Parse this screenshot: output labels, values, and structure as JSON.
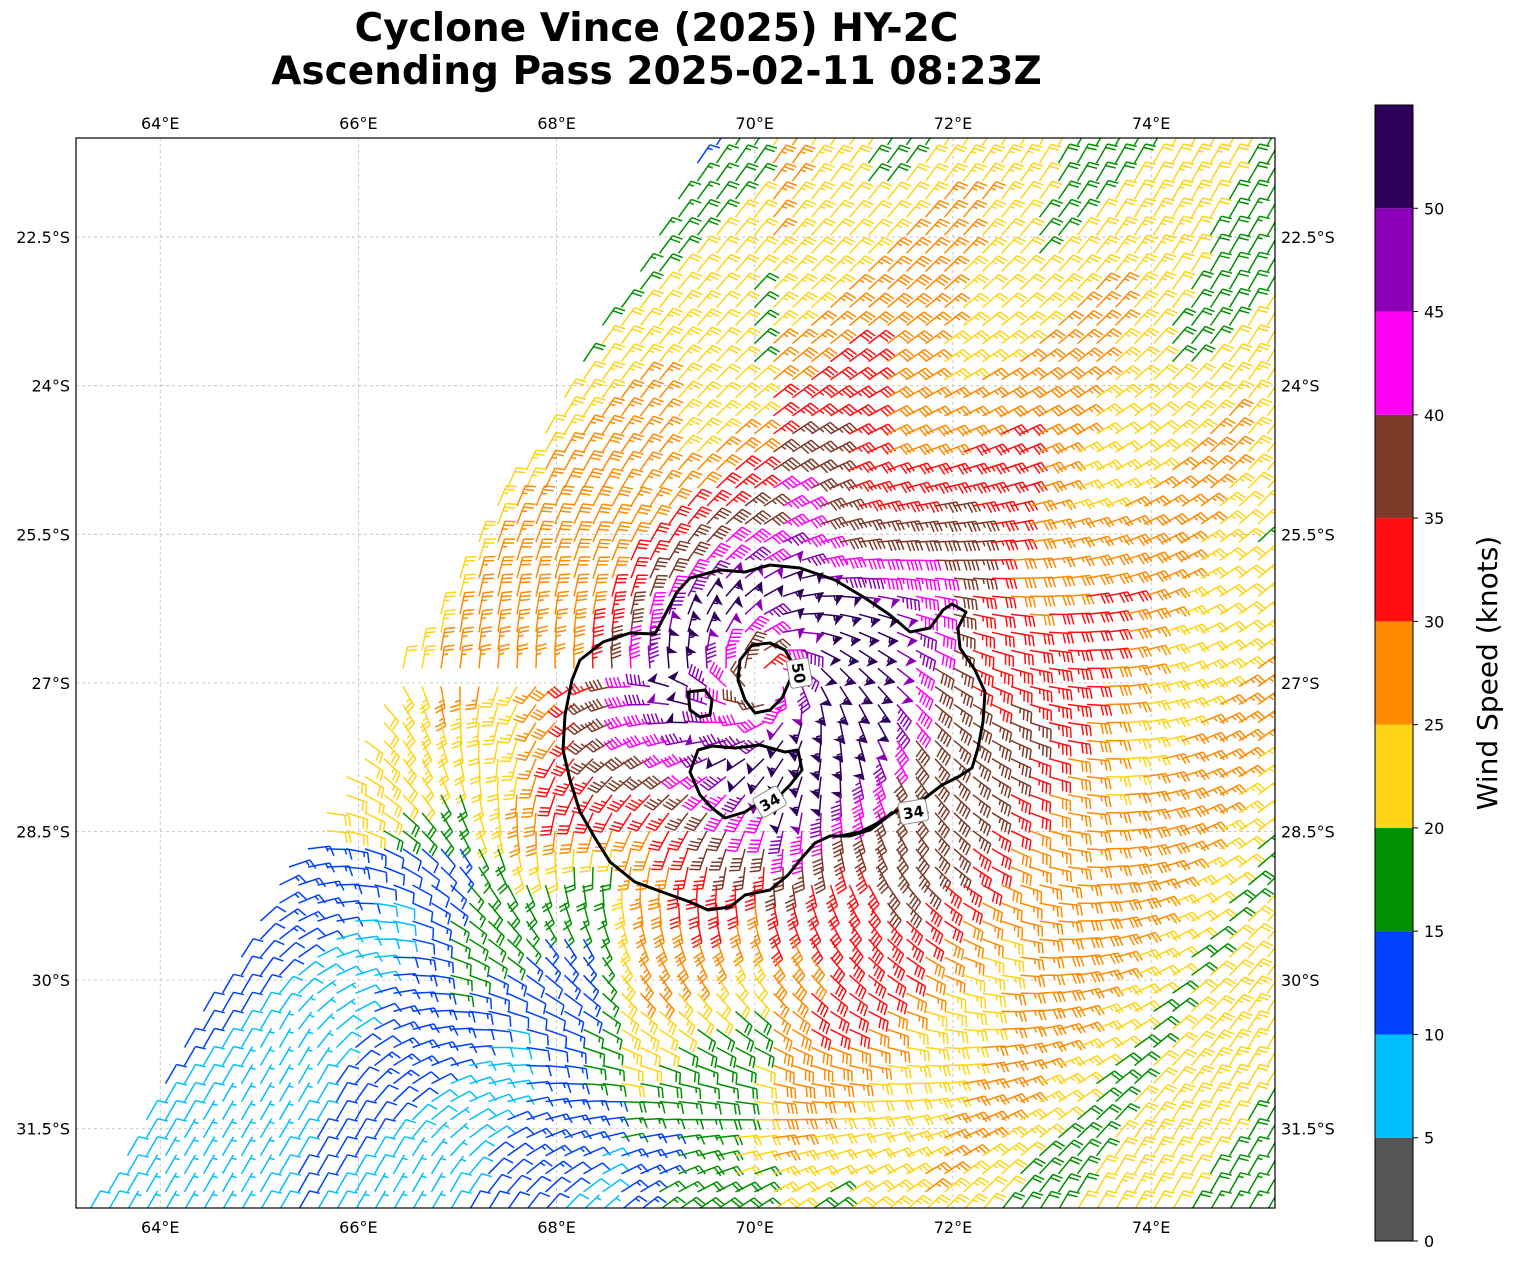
{
  "title": {
    "line1": "Cyclone Vince (2025) HY-2C",
    "line2": "Ascending Pass 2025-02-11 08:23Z"
  },
  "axes": {
    "lon_ticks": [
      "64°E",
      "66°E",
      "68°E",
      "70°E",
      "72°E",
      "74°E"
    ],
    "lat_ticks": [
      "22.5°S",
      "24°S",
      "25.5°S",
      "27°S",
      "28.5°S",
      "30°S",
      "31.5°S"
    ],
    "lon_values": [
      64,
      66,
      68,
      70,
      72,
      74
    ],
    "lat_values": [
      -22.5,
      -24,
      -25.5,
      -27,
      -28.5,
      -30,
      -31.5
    ],
    "lon_range": [
      63.15,
      75.25
    ],
    "lat_range": [
      -32.3,
      -21.5
    ]
  },
  "colorbar": {
    "label": "Wind Speed (knots)",
    "tick_labels": [
      "0",
      "5",
      "10",
      "15",
      "20",
      "25",
      "30",
      "35",
      "40",
      "45",
      "50"
    ],
    "bins": [
      {
        "min": 0,
        "max": 5,
        "color": "#555555"
      },
      {
        "min": 5,
        "max": 10,
        "color": "#00bfff"
      },
      {
        "min": 10,
        "max": 15,
        "color": "#0041ff"
      },
      {
        "min": 15,
        "max": 20,
        "color": "#009000"
      },
      {
        "min": 20,
        "max": 25,
        "color": "#ffd416"
      },
      {
        "min": 25,
        "max": 30,
        "color": "#ff8a00"
      },
      {
        "min": 30,
        "max": 35,
        "color": "#ff0e10"
      },
      {
        "min": 35,
        "max": 40,
        "color": "#7d3a28"
      },
      {
        "min": 40,
        "max": 45,
        "color": "#ff00f6"
      },
      {
        "min": 45,
        "max": 50,
        "color": "#8a00b6"
      },
      {
        "min": 50,
        "max": 55,
        "color": "#2e005c"
      }
    ]
  },
  "storm": {
    "center_lon": 70.15,
    "center_lat": -27.0
  },
  "contours": {
    "labels": [
      {
        "text": "50",
        "lon": 70.45,
        "lat": -26.9,
        "rotate": 80
      },
      {
        "text": "34",
        "lon": 70.15,
        "lat": -28.2,
        "rotate": -30
      },
      {
        "text": "34",
        "lon": 71.6,
        "lat": -28.3,
        "rotate": -10
      }
    ]
  }
}
